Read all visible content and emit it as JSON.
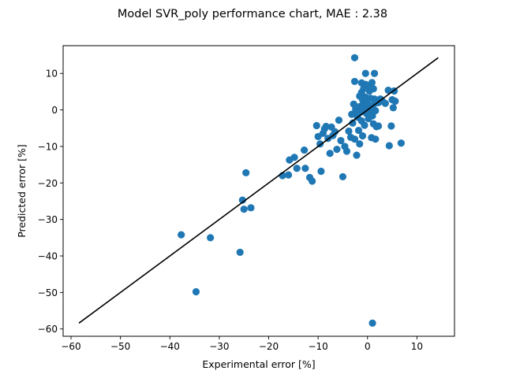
{
  "chart_data": {
    "type": "scatter",
    "title": "Model SVR_poly performance chart, MAE :  2.38",
    "xlabel": "Experimental error [%]",
    "ylabel": "Predicted error [%]",
    "xlim": [
      -61.6,
      17.6
    ],
    "ylim": [
      -62.0,
      17.6
    ],
    "xticks": [
      -60,
      -50,
      -40,
      -30,
      -20,
      -10,
      0,
      10
    ],
    "yticks": [
      -60,
      -50,
      -40,
      -30,
      -20,
      -10,
      0,
      10
    ],
    "xtick_labels": [
      "−60",
      "−50",
      "−40",
      "−30",
      "−20",
      "−10",
      "0",
      "10"
    ],
    "ytick_labels": [
      "−60",
      "−50",
      "−40",
      "−30",
      "−20",
      "−10",
      "0",
      "10"
    ],
    "grid": false,
    "legend": false,
    "series": [
      {
        "marker_color": "#1f77b4",
        "points": [
          [
            -37.7,
            -34.2
          ],
          [
            -34.7,
            -49.8
          ],
          [
            -31.8,
            -35.0
          ],
          [
            -25.8,
            -39.0
          ],
          [
            -25.3,
            -24.7
          ],
          [
            -25.0,
            -27.2
          ],
          [
            -24.6,
            -17.2
          ],
          [
            -23.6,
            -26.8
          ],
          [
            -17.2,
            -18.0
          ],
          [
            -16.0,
            -17.8
          ],
          [
            -15.8,
            -13.7
          ],
          [
            -14.8,
            -13.0
          ],
          [
            -14.3,
            -16.0
          ],
          [
            -12.8,
            -11.0
          ],
          [
            -12.6,
            -16.0
          ],
          [
            -11.7,
            -18.5
          ],
          [
            -11.2,
            -19.5
          ],
          [
            -10.3,
            -4.3
          ],
          [
            -10.0,
            -7.3
          ],
          [
            -9.6,
            -9.3
          ],
          [
            -9.4,
            -16.8
          ],
          [
            -9.0,
            -6.4
          ],
          [
            -8.7,
            -5.2
          ],
          [
            -8.4,
            -4.5
          ],
          [
            -8.0,
            -7.8
          ],
          [
            -7.6,
            -11.9
          ],
          [
            -7.3,
            -4.7
          ],
          [
            -7.0,
            -7.0
          ],
          [
            -6.6,
            -6.0
          ],
          [
            -6.2,
            -10.8
          ],
          [
            -5.8,
            -2.8
          ],
          [
            -5.4,
            -8.4
          ],
          [
            -5.0,
            -18.3
          ],
          [
            -4.6,
            -10.0
          ],
          [
            -4.2,
            -11.3
          ],
          [
            -3.8,
            -5.8
          ],
          [
            -3.4,
            -7.5
          ],
          [
            -3.0,
            -3.6
          ],
          [
            -2.6,
            -8.0
          ],
          [
            -2.2,
            -12.4
          ],
          [
            -2.0,
            -2.0
          ],
          [
            -1.8,
            -5.6
          ],
          [
            -1.6,
            -9.3
          ],
          [
            -1.4,
            -0.6
          ],
          [
            -1.2,
            -3.0
          ],
          [
            -1.0,
            -7.1
          ],
          [
            -0.8,
            1.8
          ],
          [
            -0.6,
            -4.2
          ],
          [
            -0.4,
            3.5
          ],
          [
            -0.2,
            -1.0
          ],
          [
            0.0,
            0.4
          ],
          [
            0.2,
            -2.4
          ],
          [
            0.4,
            5.2
          ],
          [
            0.6,
            -0.8
          ],
          [
            0.8,
            -7.6
          ],
          [
            1.0,
            1.2
          ],
          [
            1.2,
            -3.8
          ],
          [
            1.4,
            3.0
          ],
          [
            1.6,
            -0.2
          ],
          [
            1.8,
            -4.6
          ],
          [
            -1.4,
            1.0
          ],
          [
            -1.0,
            2.8
          ],
          [
            -0.6,
            -0.2
          ],
          [
            -0.2,
            2.0
          ],
          [
            0.2,
            1.4
          ],
          [
            0.6,
            3.2
          ],
          [
            1.0,
            -1.6
          ],
          [
            -2.4,
            0.2
          ],
          [
            -2.8,
            1.6
          ],
          [
            -3.2,
            -1.2
          ],
          [
            -1.8,
            0.8
          ],
          [
            0.4,
            -0.6
          ],
          [
            0.9,
            0.6
          ],
          [
            1.5,
            1.8
          ],
          [
            2.2,
            2.0
          ],
          [
            2.6,
            3.0
          ],
          [
            3.0,
            2.4
          ],
          [
            3.6,
            1.8
          ],
          [
            4.2,
            5.4
          ],
          [
            5.0,
            2.8
          ],
          [
            5.4,
            5.2
          ],
          [
            5.6,
            2.4
          ],
          [
            5.2,
            0.6
          ],
          [
            4.8,
            -4.4
          ],
          [
            4.4,
            -9.8
          ],
          [
            6.8,
            -9.1
          ],
          [
            -2.0,
            -0.4
          ],
          [
            -1.6,
            3.8
          ],
          [
            -1.2,
            4.8
          ],
          [
            -0.8,
            5.8
          ],
          [
            -0.4,
            7.0
          ],
          [
            0.2,
            6.2
          ],
          [
            -2.6,
            14.3
          ],
          [
            -2.6,
            7.8
          ],
          [
            -1.2,
            7.4
          ],
          [
            -0.4,
            10.0
          ],
          [
            0.9,
            7.5
          ],
          [
            1.4,
            10.0
          ],
          [
            1.2,
            5.8
          ],
          [
            1.6,
            -8.0
          ],
          [
            2.2,
            -4.4
          ],
          [
            1.0,
            -58.4
          ]
        ]
      }
    ],
    "reference_line": {
      "from": [
        -58.4,
        -58.4
      ],
      "to": [
        14.3,
        14.3
      ],
      "color": "#000000"
    }
  }
}
